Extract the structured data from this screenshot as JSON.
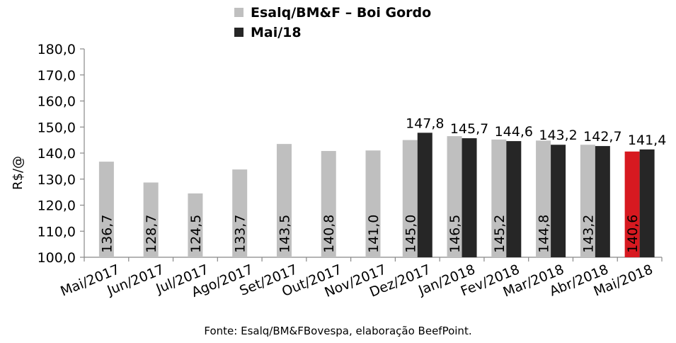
{
  "chart_data": {
    "type": "bar",
    "ylabel": "R$/@",
    "ylim": [
      100,
      180
    ],
    "ytick_step": 10,
    "grid": false,
    "legend_position": "top",
    "categories": [
      "Mai/2017",
      "Jun/2017",
      "Jul/2017",
      "Ago/2017",
      "Set/2017",
      "Out/2017",
      "Nov/2017",
      "Dez/2017",
      "Jan/2018",
      "Fev/2018",
      "Mar/2018",
      "Abr/2018",
      "Mai/2018"
    ],
    "series": [
      {
        "name": "Esalq/BM&F – Boi Gordo",
        "color": "#bfbfbf",
        "values": [
          136.7,
          128.7,
          124.5,
          133.7,
          143.5,
          140.8,
          141.0,
          145.0,
          146.5,
          145.2,
          144.8,
          143.2,
          140.6
        ],
        "labels": [
          "136,7",
          "128,7",
          "124,5",
          "133,7",
          "143,5",
          "140,8",
          "141,0",
          "145,0",
          "146,5",
          "145,2",
          "144,8",
          "143,2",
          "140,6"
        ]
      },
      {
        "name": "Mai/18",
        "color": "#262626",
        "values": [
          null,
          null,
          null,
          null,
          null,
          null,
          null,
          147.8,
          145.7,
          144.6,
          143.2,
          142.7,
          141.4
        ],
        "labels": [
          "",
          "",
          "",
          "",
          "",
          "",
          "",
          "147,8",
          "145,7",
          "144,6",
          "143,2",
          "142,7",
          "141,4"
        ]
      }
    ],
    "highlight": {
      "category_index": 12,
      "series_index": 0,
      "color": "#d71920"
    },
    "source": "Fonte: Esalq/BM&FBovespa, elaboração BeefPoint."
  }
}
